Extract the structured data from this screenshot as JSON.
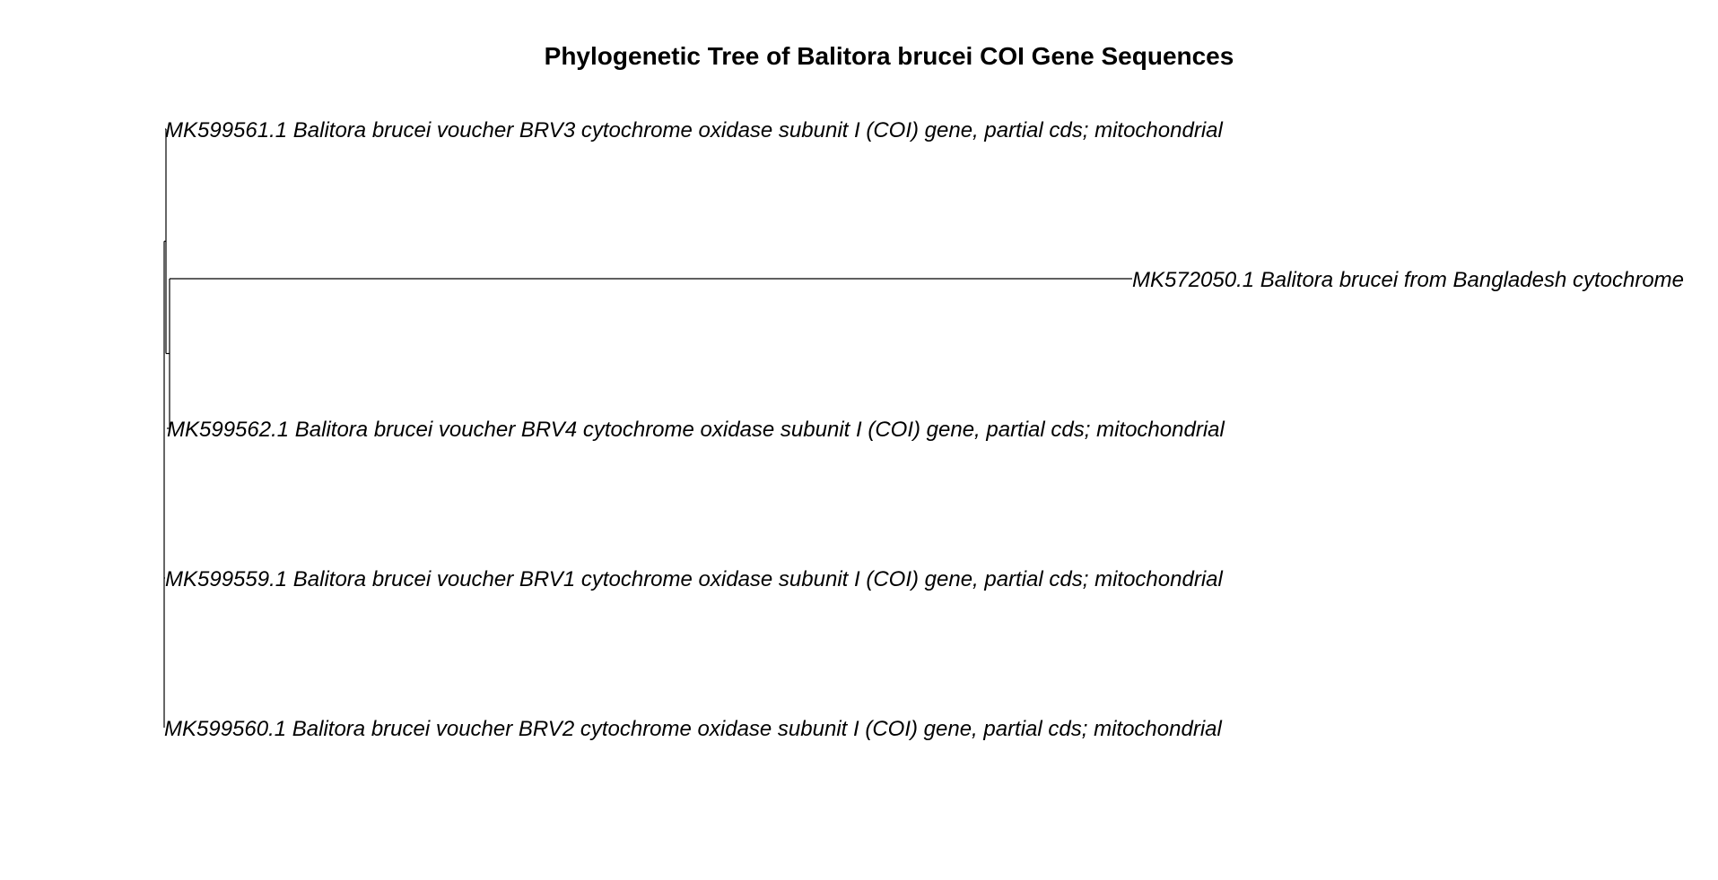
{
  "title": "Phylogenetic Tree of Balitora brucei COI Gene Sequences",
  "tree": {
    "type": "phylogram",
    "tips": [
      {
        "id": "tip1",
        "label": "MK599561.1 Balitora brucei voucher BRV3 cytochrome oxidase subunit I (COI) gene, partial cds; mitochondrial"
      },
      {
        "id": "tip2",
        "label": "MK572050.1 Balitora brucei from Bangladesh cytochrome"
      },
      {
        "id": "tip3",
        "label": "MK599562.1 Balitora brucei voucher BRV4 cytochrome oxidase subunit I (COI) gene, partial cds; mitochondrial"
      },
      {
        "id": "tip4",
        "label": "MK599559.1 Balitora brucei voucher BRV1 cytochrome oxidase subunit I (COI) gene, partial cds; mitochondrial"
      },
      {
        "id": "tip5",
        "label": "MK599560.1 Balitora brucei voucher BRV2 cytochrome oxidase subunit I (COI) gene, partial cds; mitochondrial"
      }
    ],
    "branch_lengths": {
      "root_to_n1": 0.0005,
      "n1_to_tip1": 0.0005,
      "n1_to_n2": 0.002,
      "n2_to_tip2": 0.5,
      "n2_to_tip3": 0.0,
      "root_to_tip4": 0.0005,
      "root_to_tip5": 0.0
    }
  }
}
